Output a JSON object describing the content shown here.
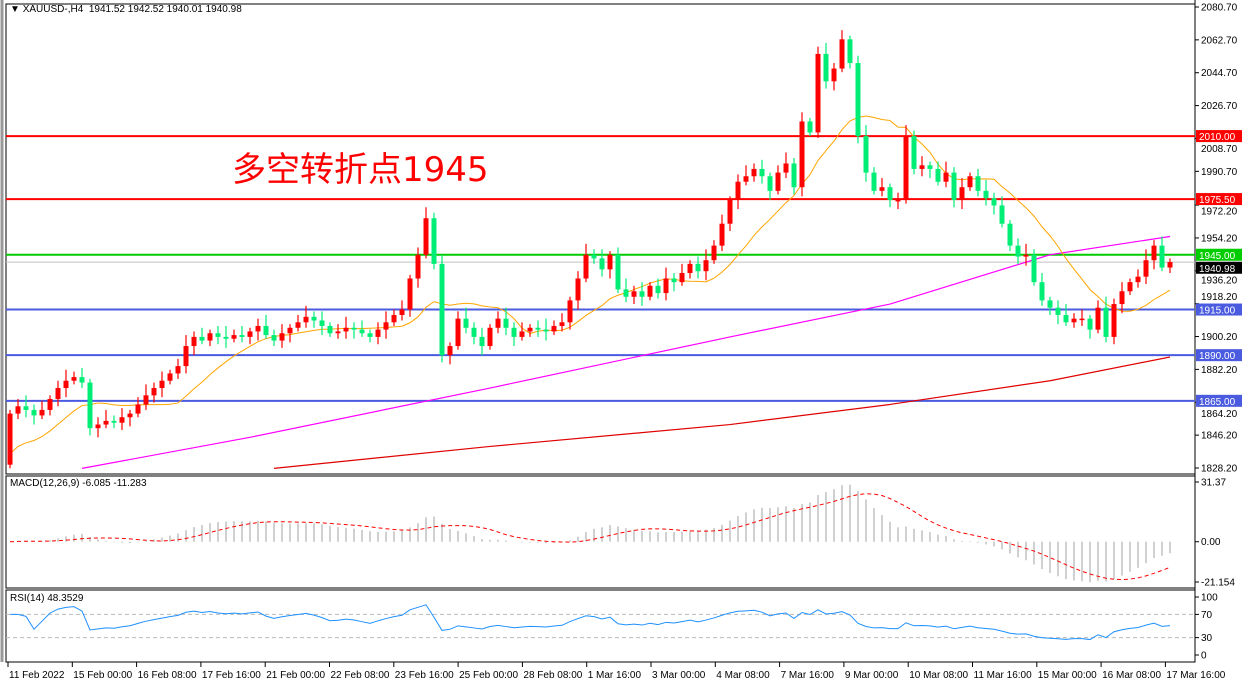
{
  "header": {
    "arrow": "▼",
    "symbol": "XAUUSD-,H4",
    "ohlc": "1941.52 1942.52 1940.01 1940.98"
  },
  "annotation": "多空转折点1945",
  "colors": {
    "up": "#ff0000",
    "down": "#00ee76",
    "ma_fast": "#ffa500",
    "ma_mid": "#ff00ff",
    "ma_slow": "#e00000",
    "resistance": "#ff0000",
    "pivot": "#00cc00",
    "support": "#4a5be0",
    "macd_hist": "#c0c0c0",
    "macd_signal": "#ff0000",
    "rsi": "#1e90ff"
  },
  "chart_data": [
    {
      "type": "candlestick",
      "title": "XAUUSD-,H4",
      "ylim": [
        1828.2,
        2080.7
      ],
      "y_ticks": [
        "2080.70",
        "2062.70",
        "2044.70",
        "2026.70",
        "2008.70",
        "1990.70",
        "1972.20",
        "1954.20",
        "1936.20",
        "1918.20",
        "1900.20",
        "1882.20",
        "1864.20",
        "1846.20",
        "1828.20"
      ],
      "x_ticks": [
        "11 Feb 2022",
        "15 Feb 00:00",
        "16 Feb 08:00",
        "17 Feb 16:00",
        "21 Feb 00:00",
        "22 Feb 08:00",
        "23 Feb 16:00",
        "25 Feb 00:00",
        "28 Feb 08:00",
        "1 Mar 16:00",
        "3 Mar 00:00",
        "4 Mar 08:00",
        "7 Mar 16:00",
        "9 Mar 00:00",
        "10 Mar 08:00",
        "11 Mar 16:00",
        "15 Mar 00:00",
        "16 Mar 08:00",
        "17 Mar 16:00"
      ],
      "first_open": 1830,
      "closes": [
        1858,
        1862,
        1860,
        1857,
        1860,
        1866,
        1872,
        1876,
        1878,
        1875,
        1850,
        1852,
        1854,
        1853,
        1856,
        1858,
        1863,
        1868,
        1872,
        1876,
        1880,
        1884,
        1895,
        1900,
        1898,
        1902,
        1900,
        1899,
        1901,
        1900,
        1903,
        1906,
        1901,
        1898,
        1902,
        1905,
        1908,
        1911,
        1909,
        1906,
        1902,
        1903,
        1905,
        1904,
        1902,
        1900,
        1904,
        1908,
        1912,
        1915,
        1932,
        1945,
        1965,
        1940,
        1890,
        1895,
        1910,
        1905,
        1900,
        1895,
        1905,
        1910,
        1905,
        1900,
        1903,
        1905,
        1904,
        1903,
        1906,
        1908,
        1920,
        1932,
        1945,
        1943,
        1937,
        1945,
        1926,
        1922,
        1925,
        1922,
        1928,
        1924,
        1932,
        1930,
        1935,
        1940,
        1936,
        1942,
        1950,
        1962,
        1975,
        1985,
        1988,
        1992,
        1988,
        1980,
        1990,
        1995,
        1982,
        2018,
        2012,
        2055,
        2040,
        2047,
        2063,
        2050,
        2010,
        1990,
        1980,
        1982,
        1975,
        1975,
        2010,
        1992,
        1994,
        1992,
        1985,
        1990,
        1975,
        1982,
        1988,
        1980,
        1976,
        1972,
        1962,
        1950,
        1944,
        1945,
        1930,
        1920,
        1916,
        1912,
        1908,
        1910,
        1910,
        1904,
        1916,
        1900,
        1918,
        1925,
        1930,
        1933,
        1942,
        1950,
        1938,
        1941
      ],
      "ma_mid_points": [
        [
          9,
          1828
        ],
        [
          30,
          1845
        ],
        [
          60,
          1872
        ],
        [
          90,
          1900
        ],
        [
          110,
          1918
        ],
        [
          130,
          1945
        ],
        [
          145,
          1955
        ],
        [
          155,
          1965
        ],
        [
          170,
          1973
        ],
        [
          185,
          1972
        ],
        [
          195,
          1970
        ]
      ],
      "ma_slow_points": [
        [
          33,
          1828
        ],
        [
          60,
          1840
        ],
        [
          90,
          1852
        ],
        [
          110,
          1863
        ],
        [
          130,
          1876
        ],
        [
          145,
          1889
        ],
        [
          175,
          1898
        ]
      ],
      "levels": [
        {
          "price": 2010.0,
          "label": "2010.00",
          "kind": "resistance"
        },
        {
          "price": 1975.5,
          "label": "1975.50",
          "kind": "resistance"
        },
        {
          "price": 1945.0,
          "label": "1945.00",
          "kind": "pivot"
        },
        {
          "price": 1915.0,
          "label": "1915.00",
          "kind": "support"
        },
        {
          "price": 1890.0,
          "label": "1890.00",
          "kind": "support"
        },
        {
          "price": 1865.0,
          "label": "1865.00",
          "kind": "support"
        }
      ],
      "current_price": {
        "price": 1940.98,
        "label": "1940.98"
      }
    },
    {
      "type": "bar",
      "title": "MACD(12,26,9) -6.085 -11.283",
      "ylim": [
        -21.154,
        31.37
      ],
      "y_ticks": [
        "31.37",
        "0.00",
        "-21.154"
      ]
    },
    {
      "type": "line",
      "title": "RSI(14) 48.3529",
      "ylim": [
        0,
        100
      ],
      "y_ticks": [
        "100",
        "70",
        "30",
        "0"
      ],
      "levels": [
        70,
        30
      ]
    }
  ]
}
